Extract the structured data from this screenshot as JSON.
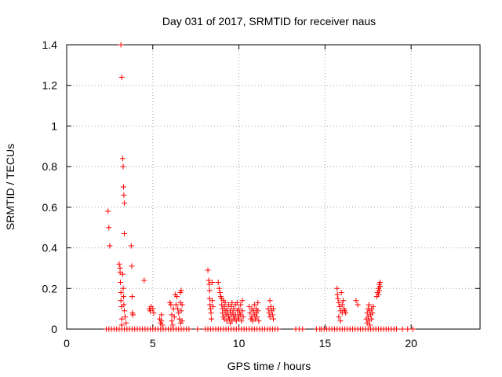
{
  "chart_data": {
    "type": "scatter",
    "title": "Day 031 of 2017, SRMTID for receiver naus",
    "xlabel": "GPS time / hours",
    "ylabel": "SRMTID / TECUs",
    "xlim": [
      0,
      24
    ],
    "ylim": [
      0,
      1.4
    ],
    "xticks": [
      0,
      5,
      10,
      15,
      20
    ],
    "yticks": [
      0,
      0.2,
      0.4,
      0.6,
      0.8,
      1,
      1.2,
      1.4
    ],
    "xtick_labels": [
      "0",
      "5",
      "10",
      "15",
      "20"
    ],
    "ytick_labels": [
      "0",
      "0.2",
      "0.4",
      "0.6",
      "0.8",
      "1",
      "1.2",
      "1.4"
    ],
    "grid": true,
    "marker": "+",
    "marker_color": "#ff0000",
    "series": [
      {
        "name": "SRMTID",
        "points": [
          [
            2.4,
            0.58
          ],
          [
            2.45,
            0.5
          ],
          [
            2.5,
            0.41
          ],
          [
            3.05,
            0.32
          ],
          [
            3.1,
            0.3
          ],
          [
            3.1,
            0.28
          ],
          [
            3.12,
            0.23
          ],
          [
            3.15,
            0.18
          ],
          [
            3.15,
            0.14
          ],
          [
            3.18,
            0.11
          ],
          [
            3.2,
            0.05
          ],
          [
            3.2,
            0.02
          ],
          [
            3.15,
            1.4
          ],
          [
            3.2,
            1.24
          ],
          [
            3.25,
            0.84
          ],
          [
            3.28,
            0.8
          ],
          [
            3.3,
            0.7
          ],
          [
            3.32,
            0.66
          ],
          [
            3.35,
            0.62
          ],
          [
            3.35,
            0.47
          ],
          [
            3.25,
            0.27
          ],
          [
            3.28,
            0.2
          ],
          [
            3.3,
            0.16
          ],
          [
            3.32,
            0.12
          ],
          [
            3.35,
            0.09
          ],
          [
            3.4,
            0.06
          ],
          [
            3.45,
            0.03
          ],
          [
            3.75,
            0.41
          ],
          [
            3.78,
            0.31
          ],
          [
            3.8,
            0.16
          ],
          [
            3.82,
            0.08
          ],
          [
            3.85,
            0.07
          ],
          [
            4.5,
            0.24
          ],
          [
            4.8,
            0.1
          ],
          [
            4.85,
            0.09
          ],
          [
            4.9,
            0.11
          ],
          [
            5.0,
            0.1
          ],
          [
            5.05,
            0.08
          ],
          [
            5.4,
            0.05
          ],
          [
            5.45,
            0.03
          ],
          [
            5.5,
            0.07
          ],
          [
            5.5,
            0.04
          ],
          [
            5.55,
            0.02
          ],
          [
            6.0,
            0.13
          ],
          [
            6.05,
            0.12
          ],
          [
            6.1,
            0.07
          ],
          [
            6.1,
            0.04
          ],
          [
            6.15,
            0.02
          ],
          [
            6.2,
            0.1
          ],
          [
            6.25,
            0.06
          ],
          [
            6.3,
            0.17
          ],
          [
            6.35,
            0.12
          ],
          [
            6.4,
            0.16
          ],
          [
            6.45,
            0.1
          ],
          [
            6.5,
            0.08
          ],
          [
            6.55,
            0.05
          ],
          [
            6.6,
            0.18
          ],
          [
            6.6,
            0.13
          ],
          [
            6.62,
            0.03
          ],
          [
            6.65,
            0.19
          ],
          [
            6.65,
            0.09
          ],
          [
            6.7,
            0.04
          ],
          [
            6.7,
            0.12
          ],
          [
            8.2,
            0.29
          ],
          [
            8.25,
            0.24
          ],
          [
            8.28,
            0.22
          ],
          [
            8.3,
            0.19
          ],
          [
            8.3,
            0.15
          ],
          [
            8.32,
            0.12
          ],
          [
            8.35,
            0.1
          ],
          [
            8.38,
            0.08
          ],
          [
            8.4,
            0.05
          ],
          [
            8.45,
            0.23
          ],
          [
            8.45,
            0.14
          ],
          [
            8.5,
            0.11
          ],
          [
            8.8,
            0.23
          ],
          [
            8.85,
            0.2
          ],
          [
            8.9,
            0.18
          ],
          [
            8.95,
            0.16
          ],
          [
            9.0,
            0.15
          ],
          [
            9.0,
            0.12
          ],
          [
            9.05,
            0.1
          ],
          [
            9.05,
            0.08
          ],
          [
            9.1,
            0.06
          ],
          [
            9.1,
            0.14
          ],
          [
            9.15,
            0.11
          ],
          [
            9.15,
            0.05
          ],
          [
            9.2,
            0.09
          ],
          [
            9.2,
            0.13
          ],
          [
            9.25,
            0.07
          ],
          [
            9.3,
            0.04
          ],
          [
            9.3,
            0.1
          ],
          [
            9.35,
            0.08
          ],
          [
            9.4,
            0.12
          ],
          [
            9.4,
            0.06
          ],
          [
            9.45,
            0.05
          ],
          [
            9.5,
            0.09
          ],
          [
            9.5,
            0.03
          ],
          [
            9.55,
            0.11
          ],
          [
            9.55,
            0.07
          ],
          [
            9.6,
            0.04
          ],
          [
            9.6,
            0.13
          ],
          [
            9.65,
            0.08
          ],
          [
            9.7,
            0.06
          ],
          [
            9.7,
            0.1
          ],
          [
            9.75,
            0.05
          ],
          [
            9.8,
            0.12
          ],
          [
            9.8,
            0.07
          ],
          [
            9.85,
            0.04
          ],
          [
            9.9,
            0.09
          ],
          [
            9.9,
            0.13
          ],
          [
            9.95,
            0.06
          ],
          [
            10.0,
            0.1
          ],
          [
            10.0,
            0.05
          ],
          [
            10.05,
            0.08
          ],
          [
            10.1,
            0.12
          ],
          [
            10.1,
            0.07
          ],
          [
            10.15,
            0.04
          ],
          [
            10.2,
            0.14
          ],
          [
            10.2,
            0.09
          ],
          [
            10.25,
            0.06
          ],
          [
            10.6,
            0.11
          ],
          [
            10.65,
            0.08
          ],
          [
            10.7,
            0.05
          ],
          [
            10.75,
            0.1
          ],
          [
            10.75,
            0.06
          ],
          [
            10.8,
            0.04
          ],
          [
            10.85,
            0.09
          ],
          [
            10.9,
            0.12
          ],
          [
            10.9,
            0.07
          ],
          [
            10.95,
            0.05
          ],
          [
            11.0,
            0.1
          ],
          [
            11.0,
            0.08
          ],
          [
            11.05,
            0.06
          ],
          [
            11.1,
            0.13
          ],
          [
            11.1,
            0.09
          ],
          [
            11.15,
            0.04
          ],
          [
            11.7,
            0.1
          ],
          [
            11.75,
            0.08
          ],
          [
            11.8,
            0.14
          ],
          [
            11.8,
            0.06
          ],
          [
            11.85,
            0.11
          ],
          [
            11.9,
            0.09
          ],
          [
            11.95,
            0.07
          ],
          [
            12.0,
            0.1
          ],
          [
            12.0,
            0.05
          ],
          [
            15.7,
            0.2
          ],
          [
            15.72,
            0.17
          ],
          [
            15.75,
            0.15
          ],
          [
            15.8,
            0.13
          ],
          [
            15.85,
            0.11
          ],
          [
            15.9,
            0.09
          ],
          [
            15.95,
            0.18
          ],
          [
            16.0,
            0.12
          ],
          [
            16.0,
            0.08
          ],
          [
            16.05,
            0.14
          ],
          [
            16.1,
            0.1
          ],
          [
            16.15,
            0.09
          ],
          [
            16.2,
            0.08
          ],
          [
            15.8,
            0.06
          ],
          [
            15.9,
            0.04
          ],
          [
            16.8,
            0.14
          ],
          [
            16.9,
            0.12
          ],
          [
            17.4,
            0.05
          ],
          [
            17.45,
            0.08
          ],
          [
            17.45,
            0.03
          ],
          [
            17.5,
            0.1
          ],
          [
            17.5,
            0.06
          ],
          [
            17.55,
            0.04
          ],
          [
            17.55,
            0.12
          ],
          [
            17.6,
            0.09
          ],
          [
            17.6,
            0.02
          ],
          [
            17.65,
            0.07
          ],
          [
            17.7,
            0.1
          ],
          [
            17.7,
            0.05
          ],
          [
            17.75,
            0.08
          ],
          [
            17.8,
            0.11
          ],
          [
            18.0,
            0.16
          ],
          [
            18.05,
            0.18
          ],
          [
            18.1,
            0.2
          ],
          [
            18.1,
            0.17
          ],
          [
            18.15,
            0.22
          ],
          [
            18.15,
            0.19
          ],
          [
            18.2,
            0.23
          ],
          [
            18.2,
            0.21
          ],
          [
            2.3,
            0
          ],
          [
            2.45,
            0
          ],
          [
            2.6,
            0
          ],
          [
            2.75,
            0
          ],
          [
            2.9,
            0
          ],
          [
            3.05,
            0
          ],
          [
            3.2,
            0
          ],
          [
            3.35,
            0
          ],
          [
            3.5,
            0
          ],
          [
            3.65,
            0
          ],
          [
            3.8,
            0
          ],
          [
            3.95,
            0
          ],
          [
            4.1,
            0
          ],
          [
            4.25,
            0
          ],
          [
            4.4,
            0
          ],
          [
            4.55,
            0
          ],
          [
            4.7,
            0
          ],
          [
            4.85,
            0
          ],
          [
            5.0,
            0
          ],
          [
            5.15,
            0
          ],
          [
            5.3,
            0
          ],
          [
            5.45,
            0
          ],
          [
            5.6,
            0
          ],
          [
            5.75,
            0
          ],
          [
            5.9,
            0
          ],
          [
            6.05,
            0
          ],
          [
            6.2,
            0
          ],
          [
            6.35,
            0
          ],
          [
            6.5,
            0
          ],
          [
            6.65,
            0
          ],
          [
            6.8,
            0
          ],
          [
            6.95,
            0
          ],
          [
            7.1,
            0
          ],
          [
            7.6,
            0
          ],
          [
            8.05,
            0
          ],
          [
            8.2,
            0
          ],
          [
            8.35,
            0
          ],
          [
            8.5,
            0
          ],
          [
            8.65,
            0
          ],
          [
            8.8,
            0
          ],
          [
            8.95,
            0
          ],
          [
            9.1,
            0
          ],
          [
            9.25,
            0
          ],
          [
            9.4,
            0
          ],
          [
            9.55,
            0
          ],
          [
            9.7,
            0
          ],
          [
            9.85,
            0
          ],
          [
            10.0,
            0
          ],
          [
            10.15,
            0
          ],
          [
            10.3,
            0
          ],
          [
            10.45,
            0
          ],
          [
            10.6,
            0
          ],
          [
            10.75,
            0
          ],
          [
            10.9,
            0
          ],
          [
            11.05,
            0
          ],
          [
            11.2,
            0
          ],
          [
            11.35,
            0
          ],
          [
            11.5,
            0
          ],
          [
            11.65,
            0
          ],
          [
            11.8,
            0
          ],
          [
            11.95,
            0
          ],
          [
            12.1,
            0
          ],
          [
            12.25,
            0
          ],
          [
            13.3,
            0
          ],
          [
            13.5,
            0
          ],
          [
            13.7,
            0
          ],
          [
            14.5,
            0
          ],
          [
            14.7,
            0
          ],
          [
            14.8,
            0
          ],
          [
            14.95,
            0
          ],
          [
            15.1,
            0
          ],
          [
            15.25,
            0
          ],
          [
            15.4,
            0
          ],
          [
            15.55,
            0
          ],
          [
            15.7,
            0
          ],
          [
            15.85,
            0
          ],
          [
            16.0,
            0
          ],
          [
            16.15,
            0
          ],
          [
            16.3,
            0
          ],
          [
            16.45,
            0
          ],
          [
            16.6,
            0
          ],
          [
            16.75,
            0
          ],
          [
            16.9,
            0
          ],
          [
            17.05,
            0
          ],
          [
            17.2,
            0
          ],
          [
            17.35,
            0
          ],
          [
            17.5,
            0
          ],
          [
            17.65,
            0
          ],
          [
            17.8,
            0
          ],
          [
            17.95,
            0
          ],
          [
            18.1,
            0
          ],
          [
            18.25,
            0
          ],
          [
            18.4,
            0
          ],
          [
            18.55,
            0
          ],
          [
            18.7,
            0
          ],
          [
            18.85,
            0
          ],
          [
            19.0,
            0
          ],
          [
            19.15,
            0
          ],
          [
            19.5,
            0
          ],
          [
            19.8,
            0
          ],
          [
            20.1,
            0
          ]
        ]
      }
    ]
  }
}
